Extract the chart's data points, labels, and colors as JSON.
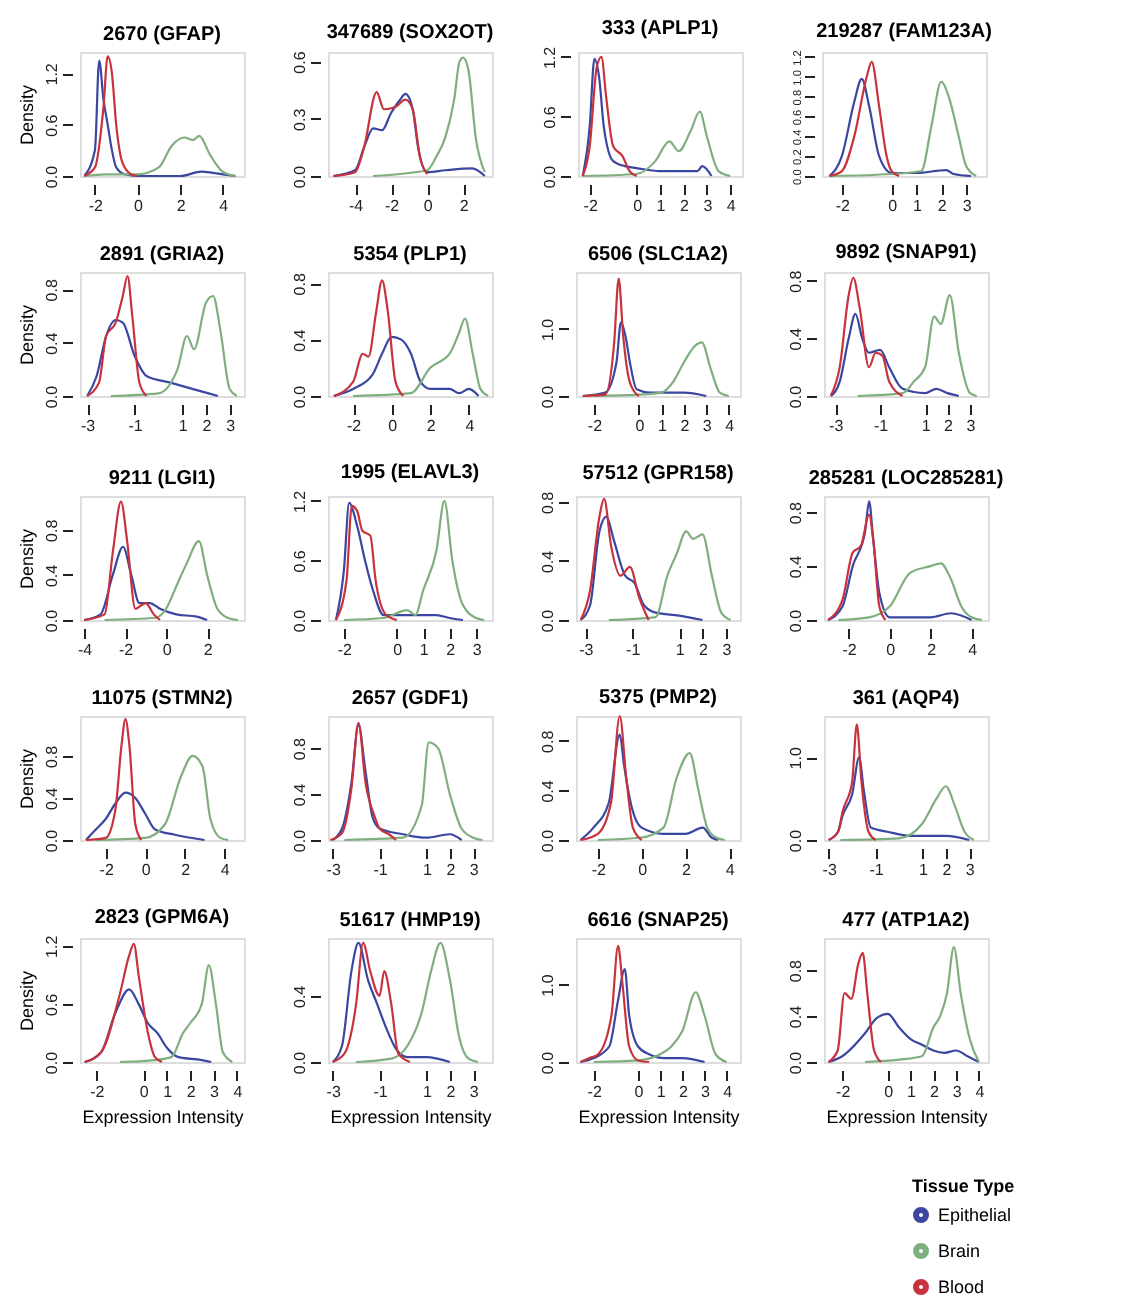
{
  "chart_data": [
    {
      "type": "line",
      "title": "2670 (GFAP)",
      "ylabel": "Density",
      "xlim": [
        -2.7,
        5
      ],
      "xticks": [
        -2,
        0,
        2,
        4
      ],
      "ylim": [
        0,
        1.45
      ],
      "yticks": [
        {
          "value": 0,
          "label": "0.0"
        },
        {
          "value": 0.6,
          "label": "0.6"
        },
        {
          "value": 1.2,
          "label": "1.2"
        }
      ],
      "grid": false,
      "legend": false,
      "series": [
        {
          "color": "#3a46a0",
          "x": [
            -2.5,
            -2.0,
            -1.8,
            -1.6,
            -1.4,
            -1.2,
            -1.0,
            -0.6,
            0,
            2,
            3,
            4,
            4.6
          ],
          "values": [
            0,
            0.3,
            1.35,
            0.9,
            0.6,
            0.3,
            0.1,
            0.02,
            0,
            0,
            0.05,
            0.02,
            0
          ]
        },
        {
          "color": "#7fae7f",
          "x": [
            -2.5,
            -1.5,
            0,
            1,
            1.6,
            2.2,
            2.6,
            2.9,
            3.4,
            4,
            4.6
          ],
          "values": [
            0,
            0.02,
            0.02,
            0.1,
            0.35,
            0.45,
            0.42,
            0.47,
            0.25,
            0.05,
            0
          ]
        },
        {
          "color": "#c8323c",
          "x": [
            -2.5,
            -2.0,
            -1.6,
            -1.4,
            -1.2,
            -1.0,
            -0.7,
            -0.3,
            0
          ],
          "values": [
            0,
            0.1,
            0.8,
            1.4,
            1.2,
            0.6,
            0.15,
            0.02,
            0
          ]
        }
      ]
    },
    {
      "type": "line",
      "title": "347689 (SOX2OT)",
      "xlim": [
        -5.5,
        3.6
      ],
      "xticks": [
        -4,
        -2,
        0,
        2
      ],
      "ylim": [
        0,
        0.65
      ],
      "yticks": [
        {
          "value": 0,
          "label": "0.0"
        },
        {
          "value": 0.3,
          "label": "0.3"
        },
        {
          "value": 0.6,
          "label": "0.6"
        }
      ],
      "grid": false,
      "legend": false,
      "series": [
        {
          "color": "#3a46a0",
          "x": [
            -5.2,
            -4,
            -3.5,
            -3,
            -2.5,
            -2,
            -1.5,
            -1.2,
            -0.8,
            -0.5,
            0,
            1,
            2.5,
            3.2
          ],
          "values": [
            0,
            0.03,
            0.15,
            0.25,
            0.24,
            0.33,
            0.4,
            0.43,
            0.35,
            0.15,
            0.02,
            0.03,
            0.04,
            0
          ]
        },
        {
          "color": "#7fae7f",
          "x": [
            -3,
            0,
            0.5,
            1,
            1.5,
            1.8,
            2,
            2.3,
            2.7,
            3.2
          ],
          "values": [
            0,
            0.03,
            0.1,
            0.2,
            0.4,
            0.6,
            0.62,
            0.55,
            0.2,
            0.02
          ]
        },
        {
          "color": "#c8323c",
          "x": [
            -5.2,
            -4,
            -3.5,
            -2.8,
            -2.4,
            -1.8,
            -1.2,
            -0.8,
            -0.4,
            0
          ],
          "values": [
            0,
            0.02,
            0.15,
            0.44,
            0.35,
            0.36,
            0.4,
            0.35,
            0.1,
            0.01
          ]
        }
      ]
    },
    {
      "type": "line",
      "title": "333 (APLP1)",
      "xlim": [
        -2.5,
        4.5
      ],
      "xticks": [
        -2,
        0,
        1,
        2,
        3,
        4
      ],
      "ylim": [
        0,
        1.25
      ],
      "yticks": [
        {
          "value": 0,
          "label": "0.0"
        },
        {
          "value": 0.6,
          "label": "0.6"
        },
        {
          "value": 1.2,
          "label": "1.2"
        }
      ],
      "grid": false,
      "legend": false,
      "series": [
        {
          "color": "#3a46a0",
          "x": [
            -2.3,
            -2.0,
            -1.8,
            -1.6,
            -1.4,
            -1.0,
            -0.5,
            0,
            1,
            2.6,
            2.8,
            3.2
          ],
          "values": [
            0,
            0.5,
            1.18,
            1.0,
            0.5,
            0.15,
            0.1,
            0.08,
            0.05,
            0.05,
            0.1,
            0
          ]
        },
        {
          "color": "#7fae7f",
          "x": [
            -2.3,
            0,
            0.8,
            1.4,
            1.8,
            2.3,
            2.7,
            3.0,
            3.5,
            4.0
          ],
          "values": [
            0,
            0.02,
            0.15,
            0.35,
            0.25,
            0.45,
            0.65,
            0.4,
            0.05,
            0
          ]
        },
        {
          "color": "#c8323c",
          "x": [
            -2.3,
            -2.0,
            -1.7,
            -1.5,
            -1.3,
            -1.0,
            -0.6,
            -0.3,
            0
          ],
          "values": [
            0,
            0.3,
            1.1,
            1.2,
            0.8,
            0.3,
            0.2,
            0.05,
            0
          ]
        }
      ]
    },
    {
      "type": "line",
      "title": "219287 (FAM123A)",
      "xlim": [
        -2.8,
        3.8
      ],
      "xticks": [
        -2,
        0,
        1,
        2,
        3
      ],
      "ylim": [
        0,
        1.25
      ],
      "yticks": [
        {
          "value": 0,
          "label": "0.0"
        },
        {
          "value": 0.2,
          "label": "0.2"
        },
        {
          "value": 0.4,
          "label": "0.4"
        },
        {
          "value": 0.6,
          "label": "0.6"
        },
        {
          "value": 0.8,
          "label": "0.8"
        },
        {
          "value": 1.0,
          "label": "1.0"
        },
        {
          "value": 1.2,
          "label": "1.2"
        }
      ],
      "grid": false,
      "legend": false,
      "series": [
        {
          "color": "#3a46a0",
          "x": [
            -2.5,
            -2,
            -1.5,
            -1.2,
            -0.9,
            -0.5,
            0,
            1,
            2.2,
            2.5,
            3.2
          ],
          "values": [
            0,
            0.2,
            0.75,
            0.98,
            0.7,
            0.2,
            0.03,
            0.03,
            0.06,
            0.02,
            0
          ]
        },
        {
          "color": "#7fae7f",
          "x": [
            -2.5,
            0,
            1.2,
            1.6,
            2,
            2.3,
            2.7,
            3,
            3.4
          ],
          "values": [
            0,
            0.02,
            0.05,
            0.5,
            0.95,
            0.8,
            0.4,
            0.1,
            0
          ]
        },
        {
          "color": "#c8323c",
          "x": [
            -2.5,
            -2,
            -1.5,
            -1,
            -0.8,
            -0.5,
            -0.2,
            0,
            0.3
          ],
          "values": [
            0,
            0.05,
            0.4,
            1.0,
            1.15,
            0.7,
            0.2,
            0.05,
            0
          ]
        }
      ]
    },
    {
      "type": "line",
      "title": "2891 (GRIA2)",
      "ylabel": "Density",
      "xlim": [
        -3.3,
        3.6
      ],
      "xticks": [
        -3,
        -1,
        1,
        2,
        3
      ],
      "ylim": [
        0,
        0.93
      ],
      "yticks": [
        {
          "value": 0,
          "label": "0.0"
        },
        {
          "value": 0.4,
          "label": "0.4"
        },
        {
          "value": 0.8,
          "label": "0.8"
        }
      ],
      "grid": false,
      "legend": false,
      "series": [
        {
          "color": "#3a46a0",
          "x": [
            -3,
            -2.6,
            -2.2,
            -1.8,
            -1.5,
            -1,
            -0.5,
            0.5,
            1.5,
            2.5
          ],
          "values": [
            0,
            0.15,
            0.45,
            0.57,
            0.55,
            0.3,
            0.15,
            0.1,
            0.05,
            0
          ]
        },
        {
          "color": "#7fae7f",
          "x": [
            -2,
            0,
            0.8,
            1.2,
            1.5,
            2,
            2.3,
            2.6,
            3,
            3.3
          ],
          "values": [
            0,
            0.02,
            0.2,
            0.45,
            0.35,
            0.7,
            0.75,
            0.5,
            0.05,
            0
          ]
        },
        {
          "color": "#c8323c",
          "x": [
            -3,
            -2.5,
            -2.2,
            -1.8,
            -1.5,
            -1.3,
            -1.1,
            -0.8,
            -0.5
          ],
          "values": [
            0,
            0.1,
            0.45,
            0.55,
            0.75,
            0.9,
            0.6,
            0.1,
            0
          ]
        }
      ]
    },
    {
      "type": "line",
      "title": "5354 (PLP1)",
      "xlim": [
        -3.3,
        5.2
      ],
      "xticks": [
        -2,
        0,
        2,
        4
      ],
      "ylim": [
        0,
        0.88
      ],
      "yticks": [
        {
          "value": 0,
          "label": "0.0"
        },
        {
          "value": 0.4,
          "label": "0.4"
        },
        {
          "value": 0.8,
          "label": "0.8"
        }
      ],
      "grid": false,
      "legend": false,
      "series": [
        {
          "color": "#3a46a0",
          "x": [
            -3,
            -2,
            -1,
            -0.5,
            0,
            0.5,
            1,
            1.5,
            2,
            3,
            3.5,
            4,
            4.5
          ],
          "values": [
            0,
            0.05,
            0.15,
            0.3,
            0.42,
            0.4,
            0.3,
            0.1,
            0.05,
            0.05,
            0.02,
            0.05,
            0
          ]
        },
        {
          "color": "#7fae7f",
          "x": [
            -2,
            1,
            2,
            3,
            3.5,
            3.8,
            4.2,
            4.6,
            5
          ],
          "values": [
            0,
            0.02,
            0.2,
            0.3,
            0.45,
            0.55,
            0.3,
            0.05,
            0
          ]
        },
        {
          "color": "#c8323c",
          "x": [
            -3,
            -2,
            -1.5,
            -1.2,
            -0.8,
            -0.5,
            -0.2,
            0.2,
            0.6
          ],
          "values": [
            0,
            0.1,
            0.3,
            0.28,
            0.6,
            0.82,
            0.6,
            0.1,
            0
          ]
        }
      ]
    },
    {
      "type": "line",
      "title": "6506 (SLC1A2)",
      "xlim": [
        -2.8,
        4.5
      ],
      "xticks": [
        -2,
        0,
        1,
        2,
        3,
        4
      ],
      "ylim": [
        0,
        1.85
      ],
      "yticks": [
        {
          "value": 0,
          "label": "0.0"
        },
        {
          "value": 1.0,
          "label": "1.0"
        }
      ],
      "grid": false,
      "legend": false,
      "series": [
        {
          "color": "#3a46a0",
          "x": [
            -2.5,
            -1.5,
            -1,
            -0.8,
            -0.6,
            -0.4,
            -0.1,
            0.5,
            2,
            3
          ],
          "values": [
            0,
            0.05,
            0.5,
            1.1,
            0.9,
            0.5,
            0.1,
            0.05,
            0.05,
            0
          ]
        },
        {
          "color": "#7fae7f",
          "x": [
            -2,
            0,
            1,
            1.5,
            2,
            2.5,
            2.8,
            3.2,
            3.6,
            4
          ],
          "values": [
            0,
            0.02,
            0.05,
            0.2,
            0.5,
            0.75,
            0.8,
            0.4,
            0.05,
            0
          ]
        },
        {
          "color": "#c8323c",
          "x": [
            -2.5,
            -1.5,
            -1.1,
            -0.9,
            -0.7,
            -0.4,
            0
          ],
          "values": [
            0,
            0.02,
            0.8,
            1.75,
            0.9,
            0.2,
            0
          ]
        }
      ]
    },
    {
      "type": "line",
      "title": "9892 (SNAP91)",
      "xlim": [
        -3.5,
        3.8
      ],
      "xticks": [
        -3,
        -1,
        1,
        2,
        3
      ],
      "ylim": [
        0,
        0.86
      ],
      "yticks": [
        {
          "value": 0,
          "label": "0.0"
        },
        {
          "value": 0.4,
          "label": "0.4"
        },
        {
          "value": 0.8,
          "label": "0.8"
        }
      ],
      "grid": false,
      "legend": false,
      "series": [
        {
          "color": "#3a46a0",
          "x": [
            -3.2,
            -2.8,
            -2.4,
            -2.1,
            -1.8,
            -1.5,
            -1,
            -0.6,
            0,
            1,
            1.5,
            2,
            2.5
          ],
          "values": [
            0,
            0.1,
            0.4,
            0.57,
            0.4,
            0.3,
            0.32,
            0.2,
            0.05,
            0.02,
            0.05,
            0.02,
            0
          ]
        },
        {
          "color": "#7fae7f",
          "x": [
            -2,
            0,
            0.5,
            1,
            1.4,
            1.7,
            2.1,
            2.5,
            3,
            3.3
          ],
          "values": [
            0,
            0.02,
            0.1,
            0.2,
            0.55,
            0.5,
            0.7,
            0.3,
            0.02,
            0
          ]
        },
        {
          "color": "#c8323c",
          "x": [
            -3.2,
            -2.8,
            -2.4,
            -2.2,
            -1.9,
            -1.5,
            -1.2,
            -0.9,
            -0.6,
            0
          ],
          "values": [
            0,
            0.2,
            0.7,
            0.82,
            0.6,
            0.2,
            0.3,
            0.28,
            0.1,
            0
          ]
        }
      ]
    },
    {
      "type": "line",
      "title": "9211 (LGI1)",
      "ylabel": "Density",
      "xlim": [
        -4.2,
        3.8
      ],
      "xticks": [
        -4,
        -2,
        0,
        2
      ],
      "ylim": [
        0,
        1.1
      ],
      "yticks": [
        {
          "value": 0,
          "label": "0.0"
        },
        {
          "value": 0.4,
          "label": "0.4"
        },
        {
          "value": 0.8,
          "label": "0.8"
        }
      ],
      "grid": false,
      "legend": false,
      "series": [
        {
          "color": "#3a46a0",
          "x": [
            -4,
            -3.2,
            -2.6,
            -2.1,
            -1.7,
            -1.3,
            -0.8,
            -0.3,
            0.5,
            1.5,
            2
          ],
          "values": [
            0,
            0.05,
            0.4,
            0.65,
            0.4,
            0.15,
            0.15,
            0.1,
            0.05,
            0.03,
            0
          ]
        },
        {
          "color": "#7fae7f",
          "x": [
            -3,
            -0.5,
            0,
            0.5,
            1,
            1.6,
            2,
            2.5,
            3,
            3.5
          ],
          "values": [
            0,
            0.02,
            0.1,
            0.3,
            0.5,
            0.7,
            0.4,
            0.1,
            0.02,
            0
          ]
        },
        {
          "color": "#c8323c",
          "x": [
            -4,
            -3,
            -2.6,
            -2.2,
            -1.9,
            -1.5,
            -1,
            -0.6,
            -0.3
          ],
          "values": [
            0,
            0.05,
            0.6,
            1.05,
            0.7,
            0.1,
            0.15,
            0.05,
            0
          ]
        }
      ]
    },
    {
      "type": "line",
      "title": "1995 (ELAVL3)",
      "xlim": [
        -2.6,
        3.6
      ],
      "xticks": [
        -2,
        0,
        1,
        2,
        3
      ],
      "ylim": [
        0,
        1.25
      ],
      "yticks": [
        {
          "value": 0,
          "label": "0.0"
        },
        {
          "value": 0.6,
          "label": "0.6"
        },
        {
          "value": 1.2,
          "label": "1.2"
        }
      ],
      "grid": false,
      "legend": false,
      "series": [
        {
          "color": "#3a46a0",
          "x": [
            -2.3,
            -2,
            -1.8,
            -1.5,
            -1.2,
            -0.9,
            -0.5,
            0.5,
            1.5,
            2,
            2.5
          ],
          "values": [
            0,
            0.5,
            1.18,
            0.95,
            0.6,
            0.3,
            0.05,
            0.05,
            0.05,
            0.02,
            0
          ]
        },
        {
          "color": "#7fae7f",
          "x": [
            -2,
            -0.5,
            0.4,
            0.7,
            1,
            1.5,
            1.8,
            2.1,
            2.5,
            3,
            3.3
          ],
          "values": [
            0,
            0.02,
            0.1,
            0.05,
            0.3,
            0.7,
            1.2,
            0.6,
            0.15,
            0.02,
            0
          ]
        },
        {
          "color": "#c8323c",
          "x": [
            -2.3,
            -1.9,
            -1.7,
            -1.5,
            -1.3,
            -1.0,
            -0.8,
            -0.4,
            0
          ],
          "values": [
            0,
            0.4,
            1.15,
            1.1,
            0.9,
            0.85,
            0.4,
            0.05,
            0
          ]
        }
      ]
    },
    {
      "type": "line",
      "title": "57512 (GPR158)",
      "xlim": [
        -3.4,
        3.6
      ],
      "xticks": [
        -3,
        -1,
        1,
        2,
        3
      ],
      "ylim": [
        0,
        0.84
      ],
      "yticks": [
        {
          "value": 0,
          "label": "0.0"
        },
        {
          "value": 0.4,
          "label": "0.4"
        },
        {
          "value": 0.8,
          "label": "0.8"
        }
      ],
      "grid": false,
      "legend": false,
      "series": [
        {
          "color": "#3a46a0",
          "x": [
            -3.2,
            -2.8,
            -2.4,
            -2.1,
            -1.8,
            -1.3,
            -0.9,
            -0.5,
            0,
            1,
            2
          ],
          "values": [
            0,
            0.1,
            0.6,
            0.7,
            0.55,
            0.3,
            0.25,
            0.1,
            0.05,
            0.03,
            0
          ]
        },
        {
          "color": "#7fae7f",
          "x": [
            -2,
            0,
            0.5,
            0.9,
            1.3,
            1.6,
            2,
            2.4,
            2.8,
            3.2
          ],
          "values": [
            0,
            0.02,
            0.3,
            0.45,
            0.6,
            0.55,
            0.58,
            0.3,
            0.05,
            0
          ]
        },
        {
          "color": "#c8323c",
          "x": [
            -3.2,
            -2.8,
            -2.4,
            -2.2,
            -1.9,
            -1.5,
            -1.1,
            -0.7,
            -0.3
          ],
          "values": [
            0,
            0.2,
            0.7,
            0.82,
            0.5,
            0.3,
            0.36,
            0.15,
            0
          ]
        }
      ]
    },
    {
      "type": "line",
      "title": "285281 (LOC285281)",
      "xlim": [
        -3.2,
        4.8
      ],
      "xticks": [
        -2,
        0,
        2,
        4
      ],
      "ylim": [
        0,
        0.92
      ],
      "yticks": [
        {
          "value": 0,
          "label": "0.0"
        },
        {
          "value": 0.4,
          "label": "0.4"
        },
        {
          "value": 0.8,
          "label": "0.8"
        }
      ],
      "grid": false,
      "legend": false,
      "series": [
        {
          "color": "#3a46a0",
          "x": [
            -3,
            -2.3,
            -1.8,
            -1.2,
            -1,
            -0.8,
            -0.5,
            0,
            2,
            3,
            4
          ],
          "values": [
            0,
            0.1,
            0.4,
            0.65,
            0.88,
            0.6,
            0.2,
            0.02,
            0.02,
            0.05,
            0
          ]
        },
        {
          "color": "#7fae7f",
          "x": [
            -2.5,
            -1,
            0,
            1,
            2,
            2.5,
            3,
            3.5,
            4,
            4.5
          ],
          "values": [
            0,
            0.02,
            0.1,
            0.35,
            0.4,
            0.42,
            0.3,
            0.1,
            0.02,
            0
          ]
        },
        {
          "color": "#c8323c",
          "x": [
            -3,
            -2.3,
            -1.8,
            -1.4,
            -1,
            -0.8,
            -0.5,
            -0.2
          ],
          "values": [
            0,
            0.15,
            0.5,
            0.55,
            0.78,
            0.6,
            0.1,
            0
          ]
        }
      ]
    },
    {
      "type": "line",
      "title": "11075 (STMN2)",
      "ylabel": "Density",
      "xlim": [
        -3.3,
        5
      ],
      "xticks": [
        -2,
        0,
        2,
        4
      ],
      "ylim": [
        0,
        1.18
      ],
      "yticks": [
        {
          "value": 0,
          "label": "0.0"
        },
        {
          "value": 0.4,
          "label": "0.4"
        },
        {
          "value": 0.8,
          "label": "0.8"
        }
      ],
      "grid": false,
      "legend": false,
      "series": [
        {
          "color": "#3a46a0",
          "x": [
            -3,
            -2.5,
            -2,
            -1.5,
            -1,
            -0.5,
            0,
            0.5,
            1.5,
            3
          ],
          "values": [
            0,
            0.1,
            0.2,
            0.35,
            0.45,
            0.4,
            0.25,
            0.1,
            0.05,
            0
          ]
        },
        {
          "color": "#7fae7f",
          "x": [
            -2.5,
            0,
            1,
            1.8,
            2.4,
            2.9,
            3.3,
            3.8,
            4.2
          ],
          "values": [
            0,
            0.02,
            0.15,
            0.6,
            0.8,
            0.7,
            0.2,
            0.02,
            0
          ]
        },
        {
          "color": "#c8323c",
          "x": [
            -3,
            -2,
            -1.5,
            -1.2,
            -1.0,
            -0.8,
            -0.5,
            -0.2
          ],
          "values": [
            0,
            0.02,
            0.3,
            0.9,
            1.15,
            0.9,
            0.15,
            0
          ]
        }
      ]
    },
    {
      "type": "line",
      "title": "2657 (GDF1)",
      "xlim": [
        -3.2,
        3.8
      ],
      "xticks": [
        -3,
        -1,
        1,
        2,
        3
      ],
      "ylim": [
        0,
        1.08
      ],
      "yticks": [
        {
          "value": 0,
          "label": "0.0"
        },
        {
          "value": 0.4,
          "label": "0.4"
        },
        {
          "value": 0.8,
          "label": "0.8"
        }
      ],
      "grid": false,
      "legend": false,
      "series": [
        {
          "color": "#3a46a0",
          "x": [
            -3,
            -2.6,
            -2.2,
            -1.9,
            -1.6,
            -1.3,
            -1,
            0,
            1,
            2,
            2.5
          ],
          "values": [
            0,
            0.1,
            0.5,
            1.0,
            0.6,
            0.2,
            0.1,
            0.05,
            0.02,
            0.05,
            0
          ]
        },
        {
          "color": "#7fae7f",
          "x": [
            -2.5,
            0,
            0.8,
            1.1,
            1.5,
            2,
            2.5,
            3,
            3.4
          ],
          "values": [
            0,
            0.02,
            0.3,
            0.85,
            0.8,
            0.4,
            0.1,
            0.02,
            0
          ]
        },
        {
          "color": "#c8323c",
          "x": [
            -3.1,
            -2.6,
            -2.2,
            -1.9,
            -1.6,
            -1.2,
            -1,
            -0.6,
            -0.3
          ],
          "values": [
            0,
            0.06,
            0.45,
            1.02,
            0.5,
            0.2,
            0.1,
            0.05,
            0
          ]
        }
      ]
    },
    {
      "type": "line",
      "title": "5375 (PMP2)",
      "xlim": [
        -3,
        4.5
      ],
      "xticks": [
        -2,
        0,
        2,
        4
      ],
      "ylim": [
        0,
        1.0
      ],
      "yticks": [
        {
          "value": 0,
          "label": "0.0"
        },
        {
          "value": 0.4,
          "label": "0.4"
        },
        {
          "value": 0.8,
          "label": "0.8"
        }
      ],
      "grid": false,
      "legend": false,
      "series": [
        {
          "color": "#3a46a0",
          "x": [
            -2.8,
            -2.2,
            -1.5,
            -1,
            -0.8,
            -0.5,
            0,
            1,
            2,
            2.8,
            3.2,
            3.5
          ],
          "values": [
            0,
            0.1,
            0.3,
            0.85,
            0.6,
            0.3,
            0.1,
            0.05,
            0.05,
            0.1,
            0.02,
            0
          ]
        },
        {
          "color": "#7fae7f",
          "x": [
            -2,
            0,
            1,
            1.6,
            2.2,
            2.6,
            3,
            3.4,
            3.8
          ],
          "values": [
            0,
            0.02,
            0.1,
            0.5,
            0.7,
            0.4,
            0.1,
            0.02,
            0
          ]
        },
        {
          "color": "#c8323c",
          "x": [
            -2.8,
            -2,
            -1.4,
            -1,
            -0.7,
            -0.4,
            0
          ],
          "values": [
            0,
            0.05,
            0.3,
            1.0,
            0.5,
            0.1,
            0
          ]
        }
      ]
    },
    {
      "type": "line",
      "title": "361 (AQP4)",
      "xlim": [
        -3.2,
        3.8
      ],
      "xticks": [
        -3,
        -1,
        1,
        2,
        3
      ],
      "ylim": [
        0,
        1.5
      ],
      "yticks": [
        {
          "value": 0,
          "label": "0.0"
        },
        {
          "value": 1.0,
          "label": "1.0"
        }
      ],
      "grid": false,
      "legend": false,
      "series": [
        {
          "color": "#3a46a0",
          "x": [
            -3,
            -2.6,
            -2.4,
            -2,
            -1.7,
            -1.5,
            -1.2,
            -0.5,
            0.5,
            2,
            3
          ],
          "values": [
            0,
            0.1,
            0.3,
            0.55,
            1.0,
            0.6,
            0.15,
            0.1,
            0.05,
            0.05,
            0
          ]
        },
        {
          "color": "#7fae7f",
          "x": [
            -2.5,
            0,
            1,
            1.6,
            2,
            2.4,
            2.8,
            3.2
          ],
          "values": [
            0,
            0.02,
            0.2,
            0.5,
            0.65,
            0.4,
            0.1,
            0
          ]
        },
        {
          "color": "#c8323c",
          "x": [
            -3,
            -2.6,
            -2.4,
            -2,
            -1.8,
            -1.6,
            -1.3,
            -1
          ],
          "values": [
            0,
            0.1,
            0.35,
            0.7,
            1.4,
            0.7,
            0.1,
            0
          ]
        }
      ]
    },
    {
      "type": "line",
      "title": "2823 (GPM6A)",
      "ylabel": "Density",
      "xlabel": "Expression Intensity",
      "xlim": [
        -2.7,
        4.3
      ],
      "xticks": [
        -2,
        0,
        1,
        2,
        3,
        4
      ],
      "ylim": [
        0,
        1.28
      ],
      "yticks": [
        {
          "value": 0,
          "label": "0.0"
        },
        {
          "value": 0.6,
          "label": "0.6"
        },
        {
          "value": 1.2,
          "label": "1.2"
        }
      ],
      "grid": false,
      "legend": false,
      "series": [
        {
          "color": "#3a46a0",
          "x": [
            -2.5,
            -1.8,
            -1.2,
            -0.6,
            -0.2,
            0.2,
            0.6,
            1,
            1.5,
            2.5,
            2.9
          ],
          "values": [
            0,
            0.1,
            0.5,
            0.75,
            0.6,
            0.4,
            0.3,
            0.15,
            0.05,
            0.02,
            0
          ]
        },
        {
          "color": "#7fae7f",
          "x": [
            -1,
            0.5,
            1.2,
            1.7,
            2,
            2.5,
            2.8,
            3.1,
            3.4,
            3.8
          ],
          "values": [
            0,
            0.02,
            0.05,
            0.3,
            0.4,
            0.6,
            1.0,
            0.6,
            0.1,
            0
          ]
        },
        {
          "color": "#c8323c",
          "x": [
            -2.5,
            -1.8,
            -1,
            -0.6,
            -0.4,
            -0.2,
            0.2,
            0.5,
            0.8
          ],
          "values": [
            0,
            0.1,
            0.7,
            1.1,
            1.22,
            0.9,
            0.3,
            0.05,
            0
          ]
        }
      ]
    },
    {
      "type": "line",
      "title": "51617 (HMP19)",
      "xlabel": "Expression Intensity",
      "xlim": [
        -3.2,
        3.8
      ],
      "xticks": [
        -3,
        -1,
        1,
        2,
        3
      ],
      "ylim": [
        0,
        0.75
      ],
      "yticks": [
        {
          "value": 0,
          "label": "0.0"
        },
        {
          "value": 0.4,
          "label": "0.4"
        }
      ],
      "grid": false,
      "legend": false,
      "series": [
        {
          "color": "#3a46a0",
          "x": [
            -3,
            -2.6,
            -2.2,
            -1.9,
            -1.5,
            -1.1,
            -0.7,
            -0.3,
            0.2,
            1,
            2
          ],
          "values": [
            0,
            0.1,
            0.55,
            0.72,
            0.5,
            0.35,
            0.2,
            0.08,
            0.03,
            0.03,
            0
          ]
        },
        {
          "color": "#7fae7f",
          "x": [
            -2,
            -0.5,
            0.2,
            0.8,
            1.2,
            1.6,
            2,
            2.4,
            2.8,
            3.2
          ],
          "values": [
            0,
            0.02,
            0.1,
            0.3,
            0.55,
            0.72,
            0.5,
            0.15,
            0.02,
            0
          ]
        },
        {
          "color": "#c8323c",
          "x": [
            -3,
            -2.5,
            -2,
            -1.7,
            -1.4,
            -1,
            -0.8,
            -0.5,
            -0.2,
            0.3
          ],
          "values": [
            0,
            0.05,
            0.35,
            0.72,
            0.55,
            0.4,
            0.55,
            0.35,
            0.05,
            0
          ]
        }
      ]
    },
    {
      "type": "line",
      "title": "6616 (SNAP25)",
      "xlabel": "Expression Intensity",
      "xlim": [
        -2.8,
        4.6
      ],
      "xticks": [
        -2,
        0,
        1,
        2,
        3,
        4
      ],
      "ylim": [
        0,
        1.6
      ],
      "yticks": [
        {
          "value": 0,
          "label": "0.0"
        },
        {
          "value": 1.0,
          "label": "1.0"
        }
      ],
      "grid": false,
      "legend": false,
      "series": [
        {
          "color": "#3a46a0",
          "x": [
            -2.6,
            -2,
            -1.3,
            -0.9,
            -0.6,
            -0.4,
            0,
            0.5,
            1.2,
            2,
            3
          ],
          "values": [
            0,
            0.05,
            0.2,
            0.8,
            1.2,
            0.6,
            0.2,
            0.1,
            0.05,
            0.05,
            0
          ]
        },
        {
          "color": "#7fae7f",
          "x": [
            -2,
            0,
            1,
            1.5,
            2,
            2.6,
            3.0,
            3.5,
            4
          ],
          "values": [
            0,
            0.02,
            0.1,
            0.2,
            0.4,
            0.9,
            0.6,
            0.1,
            0
          ]
        },
        {
          "color": "#c8323c",
          "x": [
            -2.6,
            -2.2,
            -1.8,
            -1.2,
            -0.9,
            -0.7,
            -0.4,
            0,
            0.5
          ],
          "values": [
            0,
            0.05,
            0.1,
            0.6,
            1.5,
            1.0,
            0.2,
            0.02,
            0
          ]
        }
      ]
    },
    {
      "type": "line",
      "title": "477 (ATP1A2)",
      "xlabel": "Expression Intensity",
      "xlim": [
        -2.8,
        4.4
      ],
      "xticks": [
        -2,
        0,
        1,
        2,
        3,
        4
      ],
      "ylim": [
        0,
        1.08
      ],
      "yticks": [
        {
          "value": 0,
          "label": "0.0"
        },
        {
          "value": 0.4,
          "label": "0.4"
        },
        {
          "value": 0.8,
          "label": "0.8"
        }
      ],
      "grid": false,
      "legend": "bottom right",
      "legend_title": "Tissue Type",
      "series": [
        {
          "name": "Epithelial",
          "color": "#3a46a0",
          "x": [
            -2.6,
            -2,
            -1,
            -0.5,
            0,
            0.5,
            1,
            1.5,
            2,
            2.5,
            3,
            3.5,
            4
          ],
          "values": [
            0,
            0.05,
            0.25,
            0.38,
            0.42,
            0.3,
            0.2,
            0.15,
            0.1,
            0.08,
            0.1,
            0.05,
            0
          ]
        },
        {
          "name": "Brain",
          "color": "#7fae7f",
          "x": [
            -1,
            0.5,
            1.5,
            2,
            2.3,
            2.6,
            2.9,
            3.2,
            3.6,
            4
          ],
          "values": [
            0,
            0.02,
            0.05,
            0.3,
            0.4,
            0.6,
            1.0,
            0.6,
            0.2,
            0
          ]
        },
        {
          "name": "Blood",
          "color": "#c8323c",
          "x": [
            -2.6,
            -2.2,
            -1.9,
            -1.6,
            -1.3,
            -1.1,
            -0.9,
            -0.6,
            -0.3
          ],
          "values": [
            0,
            0.1,
            0.6,
            0.55,
            0.85,
            0.95,
            0.6,
            0.1,
            0
          ]
        }
      ]
    }
  ]
}
